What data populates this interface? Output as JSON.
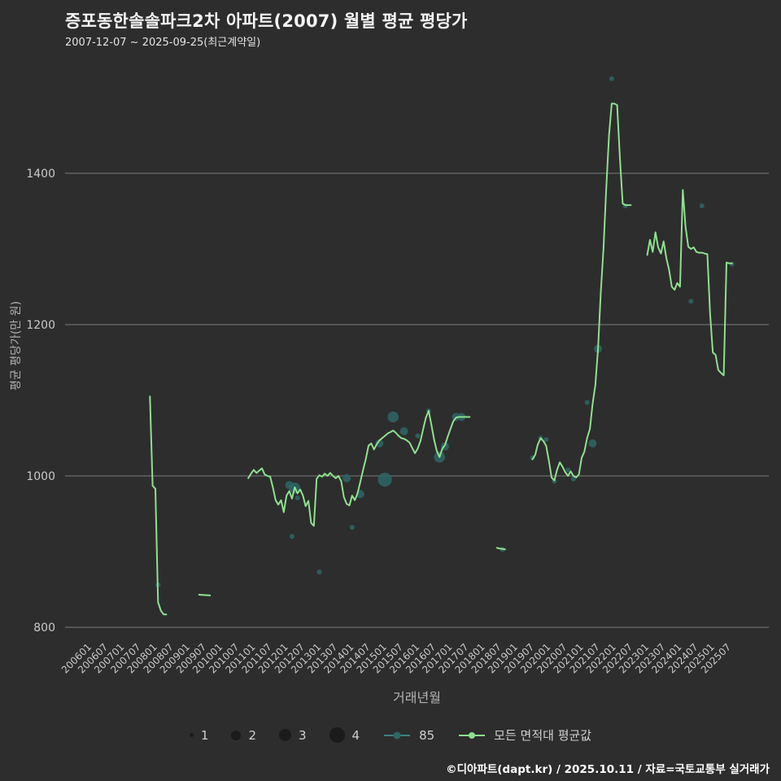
{
  "page": {
    "title": "증포동한솔솔파크2차 아파트(2007) 월별 평균 평당가",
    "subtitle": "2007-12-07 ~ 2025-09-25(최근계약일)",
    "footer": "©디아파트(dapt.kr) / 2025.10.11 / 자료=국토교통부 실거래가"
  },
  "colors": {
    "background": "#2d2d2d",
    "title_text": "#f5f5f5",
    "grid": "#7a7a7a",
    "tick_label": "#c9c9c9",
    "axis_label": "#b3b3b3",
    "line_green": "#8fe08f",
    "scatter_teal": "#2f6666",
    "legend_teal": "#3e8080",
    "legend_size_dot": "#1b1b1b",
    "footer_text": "#ffffff"
  },
  "legend": {
    "sizes": [
      "1",
      "2",
      "3",
      "4"
    ],
    "series_85": "85",
    "series_all": "모든 면적대 평균값"
  },
  "chart_data": {
    "type": "line",
    "title": "증포동한솔솔파크2차 아파트(2007) 월별 평균 평당가",
    "subtitle": "2007-12-07 ~ 2025-09-25(최근계약일)",
    "xlabel": "거래년월",
    "ylabel": "평균 평당가(만 원)",
    "ylim": [
      790,
      1540
    ],
    "yticks": [
      800,
      1000,
      1200,
      1400
    ],
    "grid": "horizontal-only",
    "legend_position": "bottom",
    "xticks": [
      "200601",
      "200607",
      "200701",
      "200707",
      "200801",
      "200807",
      "200901",
      "200907",
      "201001",
      "201007",
      "201101",
      "201107",
      "201201",
      "201207",
      "201301",
      "201307",
      "201401",
      "201407",
      "201501",
      "201507",
      "201601",
      "201607",
      "201701",
      "201707",
      "201801",
      "201807",
      "201901",
      "201907",
      "202001",
      "202007",
      "202101",
      "202107",
      "202201",
      "202207",
      "202301",
      "202307",
      "202401",
      "202407",
      "202501",
      "202507"
    ],
    "series": [
      {
        "name": "모든 면적대 평균값",
        "type": "line",
        "color": "#8fe08f",
        "segments": [
          [
            [
              "200712",
              1105
            ],
            [
              "200801",
              987
            ],
            [
              "200802",
              983
            ],
            [
              "200803",
              833
            ],
            [
              "200804",
              822
            ],
            [
              "200805",
              817
            ],
            [
              "200806",
              817
            ]
          ],
          [
            [
              "200906",
              843
            ],
            [
              "200910",
              842
            ]
          ],
          [
            [
              "201012",
              997
            ],
            [
              "201101",
              1003
            ],
            [
              "201102",
              1008
            ],
            [
              "201103",
              1004
            ],
            [
              "201104",
              1007
            ],
            [
              "201105",
              1010
            ],
            [
              "201106",
              1002
            ],
            [
              "201107",
              1000
            ],
            [
              "201108",
              999
            ],
            [
              "201109",
              985
            ],
            [
              "201110",
              968
            ],
            [
              "201111",
              962
            ],
            [
              "201112",
              968
            ],
            [
              "201201",
              952
            ],
            [
              "201202",
              974
            ],
            [
              "201203",
              980
            ],
            [
              "201204",
              970
            ],
            [
              "201205",
              985
            ],
            [
              "201206",
              977
            ],
            [
              "201207",
              982
            ],
            [
              "201208",
              974
            ],
            [
              "201209",
              960
            ],
            [
              "201210",
              967
            ],
            [
              "201211",
              938
            ],
            [
              "201212",
              934
            ],
            [
              "201301",
              996
            ],
            [
              "201302",
              1001
            ],
            [
              "201303",
              999
            ],
            [
              "201304",
              1003
            ],
            [
              "201305",
              1000
            ],
            [
              "201306",
              1004
            ],
            [
              "201307",
              1000
            ],
            [
              "201308",
              997
            ],
            [
              "201309",
              1000
            ],
            [
              "201310",
              993
            ],
            [
              "201311",
              972
            ],
            [
              "201312",
              963
            ],
            [
              "201401",
              961
            ],
            [
              "201402",
              974
            ],
            [
              "201403",
              968
            ],
            [
              "201404",
              977
            ],
            [
              "201405",
              992
            ],
            [
              "201406",
              1008
            ],
            [
              "201407",
              1022
            ],
            [
              "201408",
              1040
            ],
            [
              "201409",
              1043
            ],
            [
              "201410",
              1035
            ],
            [
              "201411",
              1042
            ],
            [
              "201412",
              1047
            ],
            [
              "201501",
              1050
            ],
            [
              "201502",
              1053
            ],
            [
              "201503",
              1056
            ],
            [
              "201504",
              1058
            ],
            [
              "201505",
              1060
            ],
            [
              "201506",
              1057
            ],
            [
              "201507",
              1053
            ],
            [
              "201508",
              1050
            ],
            [
              "201509",
              1049
            ],
            [
              "201510",
              1047
            ],
            [
              "201511",
              1044
            ],
            [
              "201512",
              1037
            ],
            [
              "201601",
              1030
            ],
            [
              "201602",
              1036
            ],
            [
              "201603",
              1046
            ],
            [
              "201604",
              1062
            ],
            [
              "201605",
              1077
            ],
            [
              "201606",
              1086
            ],
            [
              "201607",
              1068
            ],
            [
              "201608",
              1048
            ],
            [
              "201609",
              1033
            ],
            [
              "201610",
              1025
            ],
            [
              "201611",
              1036
            ],
            [
              "201612",
              1041
            ],
            [
              "201701",
              1052
            ],
            [
              "201702",
              1062
            ],
            [
              "201703",
              1072
            ],
            [
              "201704",
              1077
            ],
            [
              "201705",
              1078
            ],
            [
              "201706",
              1078
            ],
            [
              "201707",
              1078
            ],
            [
              "201708",
              1078
            ],
            [
              "201709",
              1078
            ]
          ],
          [
            [
              "201807",
              905
            ],
            [
              "201808",
              904
            ],
            [
              "201810",
              903
            ]
          ],
          [
            [
              "201908",
              1022
            ],
            [
              "201909",
              1028
            ],
            [
              "201910",
              1042
            ],
            [
              "201911",
              1050
            ],
            [
              "201912",
              1046
            ],
            [
              "202001",
              1040
            ],
            [
              "202002",
              1020
            ],
            [
              "202003",
              998
            ],
            [
              "202004",
              994
            ],
            [
              "202005",
              1008
            ],
            [
              "202006",
              1018
            ],
            [
              "202007",
              1012
            ],
            [
              "202008",
              1005
            ],
            [
              "202009",
              1000
            ],
            [
              "202010",
              1006
            ],
            [
              "202011",
              1000
            ],
            [
              "202012",
              998
            ],
            [
              "202101",
              1002
            ],
            [
              "202102",
              1024
            ],
            [
              "202103",
              1032
            ],
            [
              "202104",
              1050
            ],
            [
              "202105",
              1062
            ],
            [
              "202106",
              1095
            ],
            [
              "202107",
              1120
            ],
            [
              "202108",
              1168
            ],
            [
              "202109",
              1243
            ],
            [
              "202110",
              1300
            ],
            [
              "202111",
              1380
            ],
            [
              "202112",
              1450
            ],
            [
              "202201",
              1492
            ],
            [
              "202202",
              1492
            ],
            [
              "202203",
              1490
            ],
            [
              "202204",
              1420
            ],
            [
              "202205",
              1360
            ],
            [
              "202206",
              1358
            ],
            [
              "202207",
              1358
            ],
            [
              "202208",
              1358
            ]
          ],
          [
            [
              "202302",
              1292
            ],
            [
              "202303",
              1312
            ],
            [
              "202304",
              1296
            ],
            [
              "202305",
              1322
            ],
            [
              "202306",
              1302
            ],
            [
              "202307",
              1294
            ],
            [
              "202308",
              1310
            ],
            [
              "202309",
              1288
            ],
            [
              "202310",
              1272
            ],
            [
              "202311",
              1250
            ],
            [
              "202312",
              1246
            ],
            [
              "202401",
              1255
            ],
            [
              "202402",
              1250
            ],
            [
              "202403",
              1378
            ],
            [
              "202404",
              1330
            ],
            [
              "202405",
              1303
            ],
            [
              "202406",
              1300
            ],
            [
              "202407",
              1302
            ],
            [
              "202408",
              1296
            ],
            [
              "202409",
              1295
            ],
            [
              "202410",
              1295
            ],
            [
              "202411",
              1294
            ],
            [
              "202412",
              1293
            ],
            [
              "202501",
              1215
            ],
            [
              "202502",
              1163
            ],
            [
              "202503",
              1160
            ],
            [
              "202504",
              1140
            ],
            [
              "202505",
              1136
            ],
            [
              "202506",
              1133
            ],
            [
              "202507",
              1282
            ],
            [
              "202508",
              1281
            ],
            [
              "202509",
              1281
            ]
          ]
        ]
      },
      {
        "name": "85",
        "type": "scatter",
        "color": "#2f6666",
        "size_legend": [
          1,
          2,
          3,
          4
        ],
        "points": [
          [
            "200803",
            856,
            1
          ],
          [
            "201203",
            988,
            2
          ],
          [
            "201204",
            920,
            1
          ],
          [
            "201205",
            984,
            3
          ],
          [
            "201206",
            971,
            1
          ],
          [
            "201302",
            873,
            1
          ],
          [
            "201312",
            997,
            2
          ],
          [
            "201402",
            932,
            1
          ],
          [
            "201405",
            976,
            2
          ],
          [
            "201412",
            1043,
            2
          ],
          [
            "201502",
            995,
            4
          ],
          [
            "201505",
            1078,
            3
          ],
          [
            "201509",
            1059,
            2
          ],
          [
            "201602",
            1053,
            1
          ],
          [
            "201606",
            1086,
            1
          ],
          [
            "201610",
            1025,
            3
          ],
          [
            "201612",
            1039,
            2
          ],
          [
            "201704",
            1078,
            2
          ],
          [
            "201706",
            1078,
            2
          ],
          [
            "201809",
            903,
            1
          ],
          [
            "201908",
            1024,
            1
          ],
          [
            "201911",
            1050,
            1
          ],
          [
            "202001",
            1048,
            1
          ],
          [
            "202004",
            993,
            1
          ],
          [
            "202009",
            1008,
            1
          ],
          [
            "202011",
            996,
            1
          ],
          [
            "202104",
            1097,
            1
          ],
          [
            "202106",
            1043,
            2
          ],
          [
            "202108",
            1168,
            2
          ],
          [
            "202201",
            1525,
            1
          ],
          [
            "202206",
            1357,
            1
          ],
          [
            "202406",
            1231,
            1
          ],
          [
            "202410",
            1357,
            1
          ],
          [
            "202509",
            1280,
            1
          ]
        ]
      }
    ]
  }
}
